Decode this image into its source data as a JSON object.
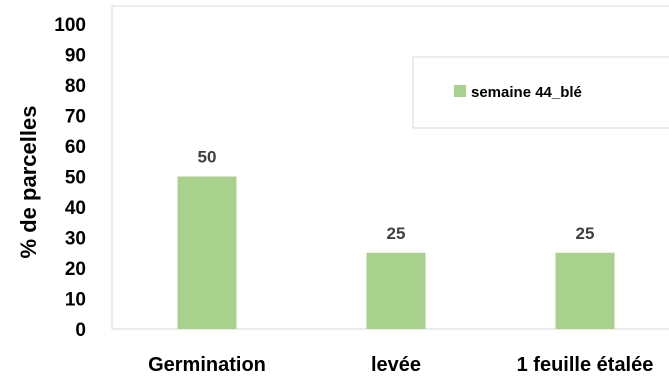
{
  "chart_data": {
    "type": "bar",
    "categories": [
      "Germination",
      "levée",
      "1 feuille étalée"
    ],
    "series": [
      {
        "name": "semaine 44_blé",
        "values": [
          50,
          25,
          25
        ],
        "color": "#a9d18e"
      }
    ],
    "ylabel": "% de parcelles",
    "ylim": [
      0,
      100
    ],
    "yticks": [
      0,
      10,
      20,
      30,
      40,
      50,
      60,
      70,
      80,
      90,
      100
    ],
    "grid": false,
    "legend_position": "top-right",
    "data_labels": [
      "50",
      "25",
      "25"
    ]
  }
}
